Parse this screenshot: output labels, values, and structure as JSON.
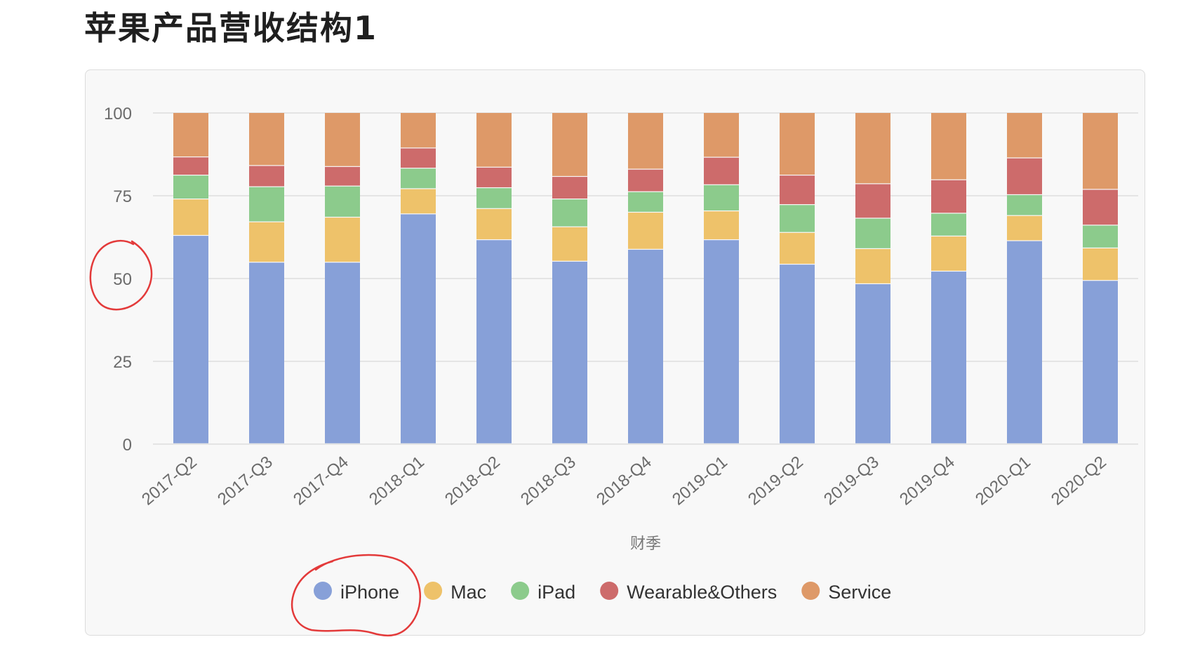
{
  "page": {
    "title": "苹果产品营收结构1"
  },
  "chart_data": {
    "type": "bar",
    "stacked": true,
    "categories": [
      "2017-Q2",
      "2017-Q3",
      "2017-Q4",
      "2018-Q1",
      "2018-Q2",
      "2018-Q3",
      "2018-Q4",
      "2019-Q1",
      "2019-Q2",
      "2019-Q3",
      "2019-Q4",
      "2020-Q1",
      "2020-Q2"
    ],
    "series": [
      {
        "name": "iPhone",
        "color": "#87a0d8",
        "values": [
          62.9,
          54.8,
          54.8,
          69.4,
          61.6,
          55.1,
          58.7,
          61.6,
          54.2,
          48.3,
          52.1,
          61.3,
          49.3
        ]
      },
      {
        "name": "Mac",
        "color": "#eec26a",
        "values": [
          11.0,
          12.2,
          13.6,
          7.6,
          9.4,
          10.4,
          11.2,
          8.7,
          9.6,
          10.6,
          10.6,
          7.6,
          9.8
        ]
      },
      {
        "name": "iPad",
        "color": "#8ccb8c",
        "values": [
          7.2,
          10.6,
          9.4,
          6.2,
          6.3,
          8.4,
          6.2,
          7.9,
          8.4,
          9.2,
          6.9,
          6.3,
          6.9
        ]
      },
      {
        "name": "Wearable&Others",
        "color": "#cd6b6b",
        "values": [
          5.5,
          6.4,
          5.9,
          6.1,
          6.2,
          6.8,
          6.8,
          8.3,
          8.9,
          10.4,
          10.1,
          11.1,
          10.8
        ]
      },
      {
        "name": "Service",
        "color": "#de9968",
        "values": [
          13.4,
          16.0,
          16.3,
          10.7,
          16.5,
          19.3,
          17.1,
          13.5,
          18.9,
          21.5,
          20.3,
          13.7,
          23.2
        ]
      }
    ],
    "xlabel": "财季",
    "ylabel": "",
    "ylim": [
      0,
      100
    ],
    "yticks": [
      0,
      25,
      50,
      75,
      100
    ],
    "grid": true,
    "legend": "bottom-center"
  }
}
